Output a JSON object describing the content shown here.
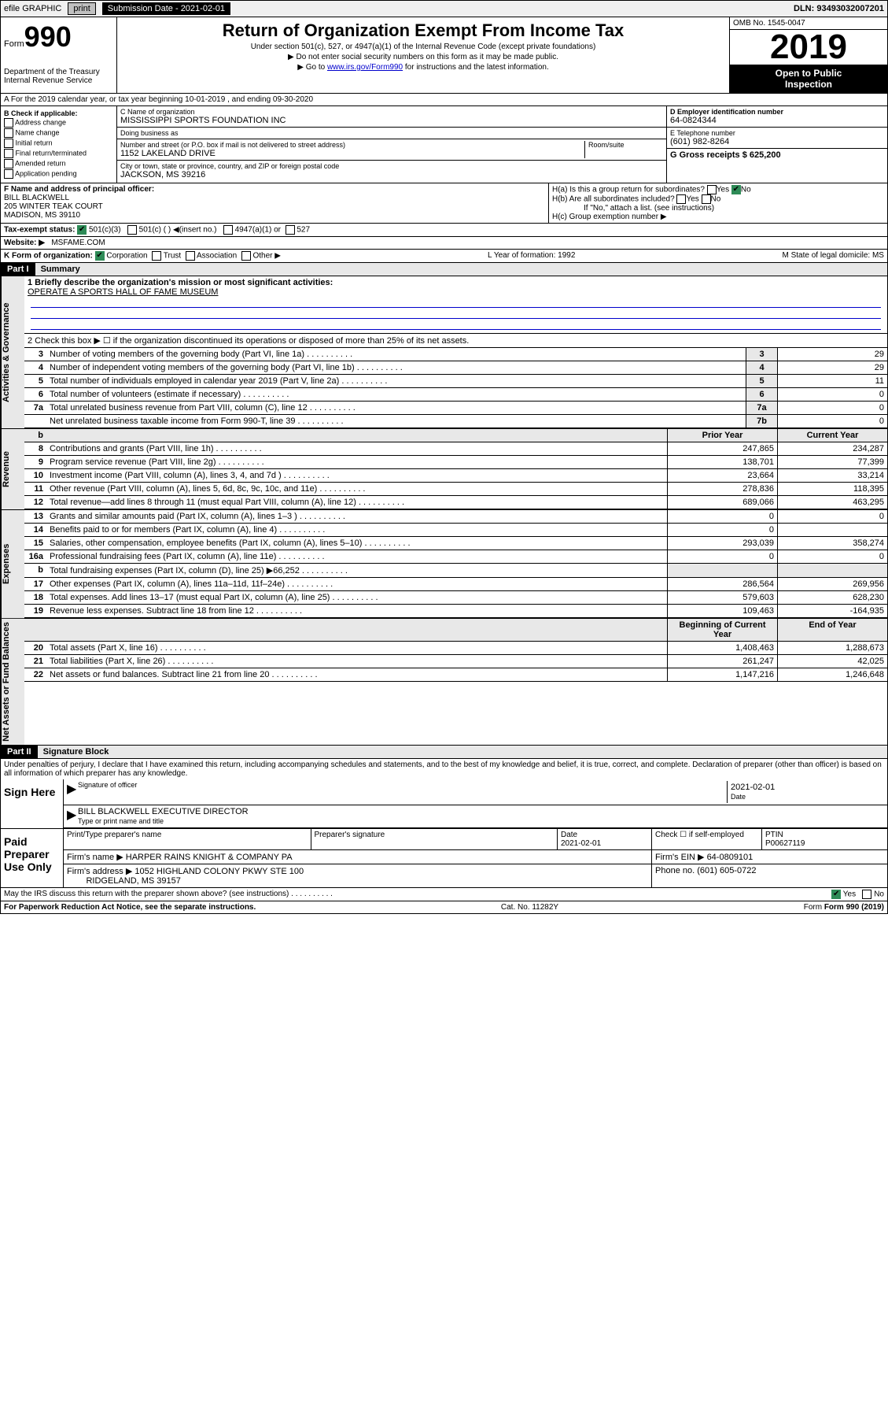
{
  "topbar": {
    "efile": "efile GRAPHIC",
    "print": "print",
    "submission_date_label": "Submission Date - 2021-02-01",
    "dln": "DLN: 93493032007201"
  },
  "header": {
    "form_label": "Form",
    "form_number": "990",
    "dept": "Department of the Treasury Internal Revenue Service",
    "title": "Return of Organization Exempt From Income Tax",
    "subtitle1": "Under section 501(c), 527, or 4947(a)(1) of the Internal Revenue Code (except private foundations)",
    "subtitle2": "▶ Do not enter social security numbers on this form as it may be made public.",
    "subtitle3_pre": "▶ Go to ",
    "subtitle3_link": "www.irs.gov/Form990",
    "subtitle3_post": " for instructions and the latest information.",
    "omb": "OMB No. 1545-0047",
    "year": "2019",
    "open_public1": "Open to Public",
    "open_public2": "Inspection"
  },
  "period": "A For the 2019 calendar year, or tax year beginning 10-01-2019    , and ending 09-30-2020",
  "box_b": {
    "label": "B Check if applicable:",
    "items": [
      "Address change",
      "Name change",
      "Initial return",
      "Final return/terminated",
      "Amended return",
      "Application pending"
    ]
  },
  "box_c": {
    "name_label": "C Name of organization",
    "name": "MISSISSIPPI SPORTS FOUNDATION INC",
    "dba_label": "Doing business as",
    "dba": "",
    "addr_label": "Number and street (or P.O. box if mail is not delivered to street address)",
    "addr": "1152 LAKELAND DRIVE",
    "room_label": "Room/suite",
    "city_label": "City or town, state or province, country, and ZIP or foreign postal code",
    "city": "JACKSON, MS  39216"
  },
  "box_d": {
    "label": "D Employer identification number",
    "value": "64-0824344"
  },
  "box_e": {
    "label": "E Telephone number",
    "value": "(601) 982-8264"
  },
  "box_g": {
    "label": "G Gross receipts $ 625,200"
  },
  "box_f": {
    "label": "F  Name and address of principal officer:",
    "name": "BILL BLACKWELL",
    "addr1": "205 WINTER TEAK COURT",
    "addr2": "MADISON, MS  39110"
  },
  "box_h": {
    "ha": "H(a)  Is this a group return for subordinates?",
    "hb": "H(b)  Are all subordinates included?",
    "hb_note": "If \"No,\" attach a list. (see instructions)",
    "hc": "H(c)  Group exemption number ▶",
    "yes": "Yes",
    "no": "No"
  },
  "box_i": {
    "label": "Tax-exempt status:",
    "o1": "501(c)(3)",
    "o2": "501(c) (    ) ◀(insert no.)",
    "o3": "4947(a)(1) or",
    "o4": "527"
  },
  "box_j": {
    "label": "Website: ▶",
    "value": "MSFAME.COM"
  },
  "box_k": {
    "label": "K Form of organization:",
    "o1": "Corporation",
    "o2": "Trust",
    "o3": "Association",
    "o4": "Other ▶"
  },
  "box_l": {
    "label": "L Year of formation: 1992"
  },
  "box_m": {
    "label": "M State of legal domicile: MS"
  },
  "part1": {
    "hdr": "Part I",
    "title": "Summary"
  },
  "summary": {
    "q1_label": "1   Briefly describe the organization's mission or most significant activities:",
    "q1_value": "OPERATE A SPORTS HALL OF FAME MUSEUM",
    "q2": "2    Check this box ▶ ☐  if the organization discontinued its operations or disposed of more than 25% of its net assets.",
    "prior_year": "Prior Year",
    "current_year": "Current Year",
    "beg_year": "Beginning of Current Year",
    "end_year": "End of Year",
    "sections": {
      "gov": "Activities & Governance",
      "rev": "Revenue",
      "exp": "Expenses",
      "net": "Net Assets or Fund Balances"
    },
    "rows_gov": [
      {
        "n": "3",
        "t": "Number of voting members of the governing body (Part VI, line 1a)",
        "box": "3",
        "v": "29"
      },
      {
        "n": "4",
        "t": "Number of independent voting members of the governing body (Part VI, line 1b)",
        "box": "4",
        "v": "29"
      },
      {
        "n": "5",
        "t": "Total number of individuals employed in calendar year 2019 (Part V, line 2a)",
        "box": "5",
        "v": "11"
      },
      {
        "n": "6",
        "t": "Total number of volunteers (estimate if necessary)",
        "box": "6",
        "v": "0"
      },
      {
        "n": "7a",
        "t": "Total unrelated business revenue from Part VIII, column (C), line 12",
        "box": "7a",
        "v": "0"
      },
      {
        "n": "",
        "t": "Net unrelated business taxable income from Form 990-T, line 39",
        "box": "7b",
        "v": "0"
      }
    ],
    "rows_rev": [
      {
        "n": "8",
        "t": "Contributions and grants (Part VIII, line 1h)",
        "p": "247,865",
        "c": "234,287"
      },
      {
        "n": "9",
        "t": "Program service revenue (Part VIII, line 2g)",
        "p": "138,701",
        "c": "77,399"
      },
      {
        "n": "10",
        "t": "Investment income (Part VIII, column (A), lines 3, 4, and 7d )",
        "p": "23,664",
        "c": "33,214"
      },
      {
        "n": "11",
        "t": "Other revenue (Part VIII, column (A), lines 5, 6d, 8c, 9c, 10c, and 11e)",
        "p": "278,836",
        "c": "118,395"
      },
      {
        "n": "12",
        "t": "Total revenue—add lines 8 through 11 (must equal Part VIII, column (A), line 12)",
        "p": "689,066",
        "c": "463,295"
      }
    ],
    "rows_exp": [
      {
        "n": "13",
        "t": "Grants and similar amounts paid (Part IX, column (A), lines 1–3 )",
        "p": "0",
        "c": "0"
      },
      {
        "n": "14",
        "t": "Benefits paid to or for members (Part IX, column (A), line 4)",
        "p": "0",
        "c": ""
      },
      {
        "n": "15",
        "t": "Salaries, other compensation, employee benefits (Part IX, column (A), lines 5–10)",
        "p": "293,039",
        "c": "358,274"
      },
      {
        "n": "16a",
        "t": "Professional fundraising fees (Part IX, column (A), line 11e)",
        "p": "0",
        "c": "0"
      },
      {
        "n": "b",
        "t": "Total fundraising expenses (Part IX, column (D), line 25) ▶66,252",
        "p": "",
        "c": "",
        "shaded": true
      },
      {
        "n": "17",
        "t": "Other expenses (Part IX, column (A), lines 11a–11d, 11f–24e)",
        "p": "286,564",
        "c": "269,956"
      },
      {
        "n": "18",
        "t": "Total expenses. Add lines 13–17 (must equal Part IX, column (A), line 25)",
        "p": "579,603",
        "c": "628,230"
      },
      {
        "n": "19",
        "t": "Revenue less expenses. Subtract line 18 from line 12",
        "p": "109,463",
        "c": "-164,935"
      }
    ],
    "rows_net": [
      {
        "n": "20",
        "t": "Total assets (Part X, line 16)",
        "p": "1,408,463",
        "c": "1,288,673"
      },
      {
        "n": "21",
        "t": "Total liabilities (Part X, line 26)",
        "p": "261,247",
        "c": "42,025"
      },
      {
        "n": "22",
        "t": "Net assets or fund balances. Subtract line 21 from line 20",
        "p": "1,147,216",
        "c": "1,246,648"
      }
    ]
  },
  "part2": {
    "hdr": "Part II",
    "title": "Signature Block"
  },
  "sig": {
    "penalty": "Under penalties of perjury, I declare that I have examined this return, including accompanying schedules and statements, and to the best of my knowledge and belief, it is true, correct, and complete. Declaration of preparer (other than officer) is based on all information of which preparer has any knowledge.",
    "sign_here": "Sign Here",
    "sig_officer_label": "Signature of officer",
    "date": "2021-02-01",
    "date_label": "Date",
    "name": "BILL BLACKWELL  EXECUTIVE DIRECTOR",
    "name_label": "Type or print name and title",
    "paid_label": "Paid Preparer Use Only",
    "prep_name_label": "Print/Type preparer's name",
    "prep_sig_label": "Preparer's signature",
    "prep_date_label": "Date",
    "prep_date": "2021-02-01",
    "self_emp": "Check ☐ if self-employed",
    "ptin_label": "PTIN",
    "ptin": "P00627119",
    "firm_name_label": "Firm's name      ▶",
    "firm_name": "HARPER RAINS KNIGHT & COMPANY PA",
    "firm_ein_label": "Firm's EIN ▶",
    "firm_ein": "64-0809101",
    "firm_addr_label": "Firm's address ▶",
    "firm_addr1": "1052 HIGHLAND COLONY PKWY STE 100",
    "firm_addr2": "RIDGELAND, MS  39157",
    "firm_phone_label": "Phone no.",
    "firm_phone": "(601) 605-0722",
    "discuss": "May the IRS discuss this return with the preparer shown above? (see instructions)",
    "discuss_yes": "Yes",
    "discuss_no": "No"
  },
  "footer": {
    "left": "For Paperwork Reduction Act Notice, see the separate instructions.",
    "center": "Cat. No. 11282Y",
    "right": "Form 990 (2019)"
  }
}
